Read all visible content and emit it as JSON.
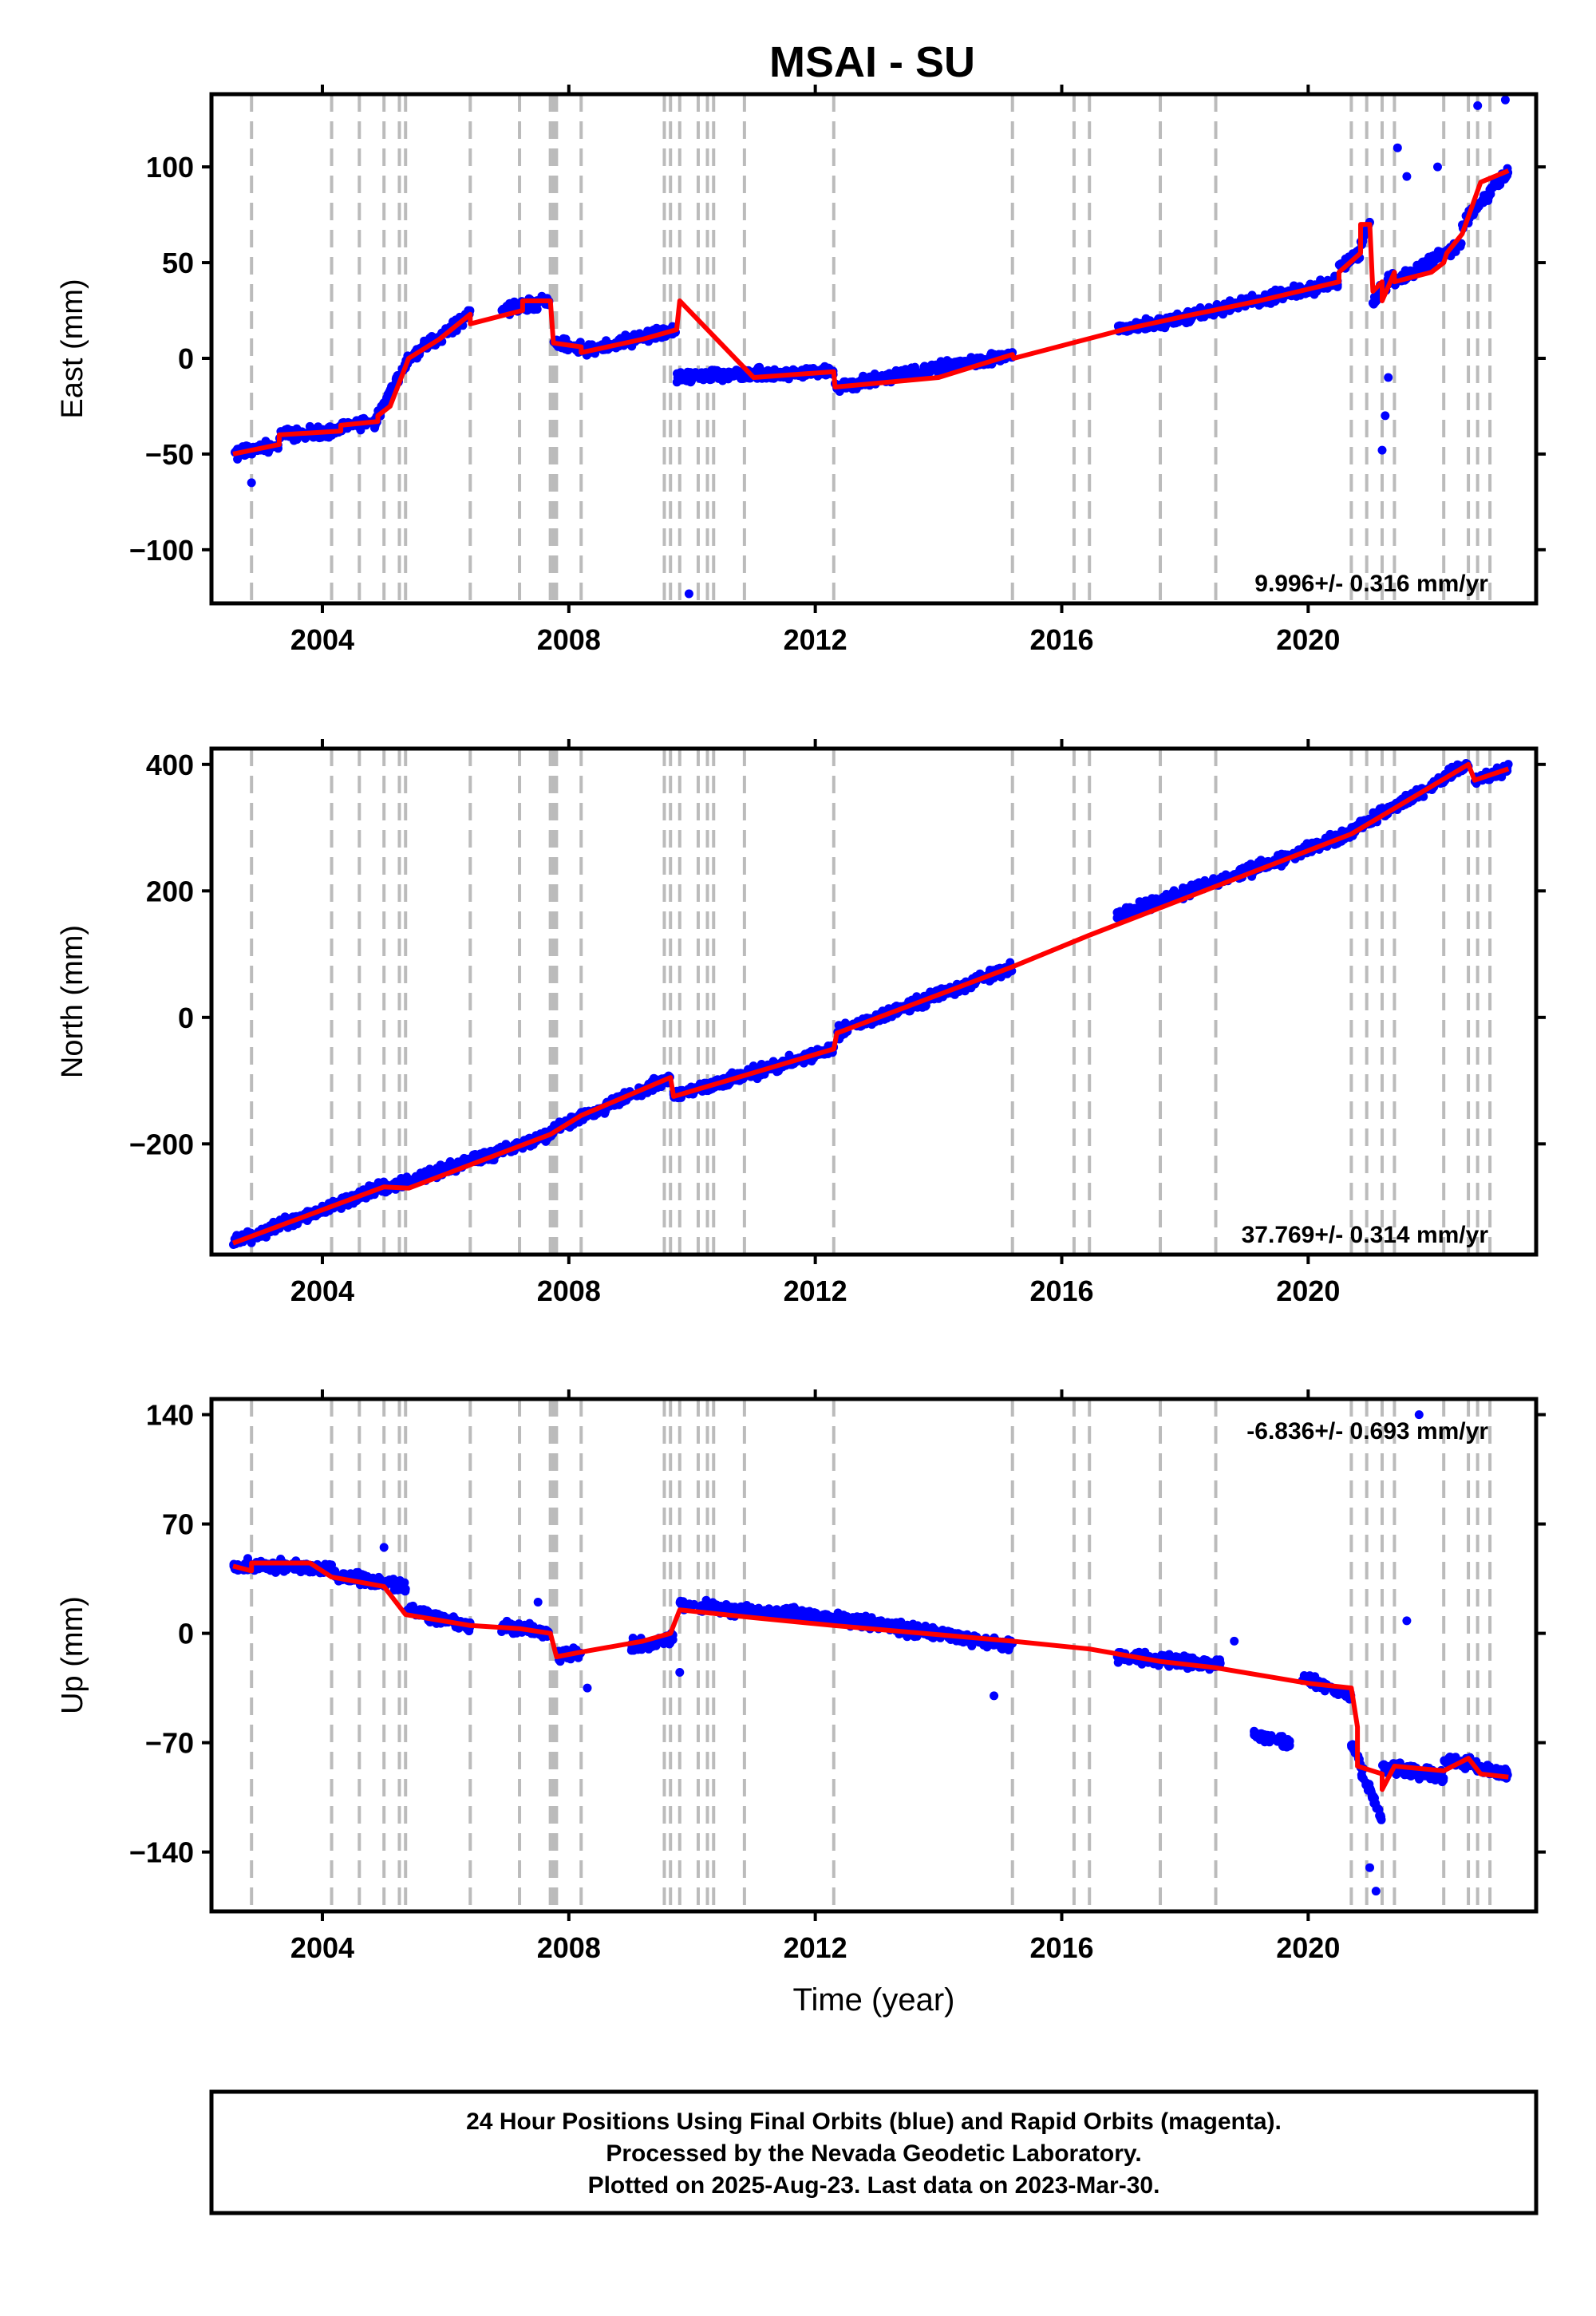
{
  "title": "MSAI - SU",
  "footer": {
    "line1": "24 Hour Positions Using Final Orbits (blue) and Rapid Orbits (magenta).",
    "line2": "Processed by the Nevada Geodetic Laboratory.",
    "line3": "Plotted on 2025-Aug-23. Last data on 2023-Mar-30."
  },
  "colors": {
    "final_orbits": "#0000ff",
    "model": "#ff0000",
    "step_lines": "#bbbbbb",
    "frame": "#000000"
  },
  "chart_data": [
    {
      "type": "scatter",
      "component": "East",
      "ylabel": "East (mm)",
      "xlabel": "",
      "xlim": [
        2002.2,
        2023.7
      ],
      "ylim": [
        -128,
        138
      ],
      "xticks": [
        2004,
        2008,
        2012,
        2016,
        2020
      ],
      "yticks": [
        -100,
        -50,
        0,
        50,
        100
      ],
      "ytick_labels": [
        "−100",
        "−50",
        "0",
        "50",
        "100"
      ],
      "rate_label": "9.996+/- 0.316 mm/yr",
      "rate_position": "bottom-right",
      "grid": false,
      "steps": [
        2002.85,
        2004.15,
        2004.6,
        2005.0,
        2005.25,
        2005.35,
        2006.4,
        2007.2,
        2007.7,
        2007.75,
        2007.8,
        2008.2,
        2009.55,
        2009.65,
        2009.8,
        2010.1,
        2010.25,
        2010.35,
        2010.85,
        2012.3,
        2015.2,
        2016.2,
        2016.45,
        2017.6,
        2018.5,
        2020.7,
        2020.95,
        2021.2,
        2021.4,
        2022.2,
        2022.6,
        2022.75,
        2022.95
      ],
      "series": [
        {
          "role": "model",
          "x": [
            2002.55,
            2003.3,
            2003.3,
            2004.3,
            2004.3,
            2004.9,
            2004.9,
            2005.1,
            2005.4,
            2005.9,
            2006.4,
            2006.4,
            2007.25,
            2007.25,
            2007.7,
            2007.75,
            2008.2,
            2008.2,
            2009.2,
            2009.75,
            2009.8,
            2011.0,
            2012.3,
            2012.32,
            2014.0,
            2015.2,
            2015.22,
            2017.0,
            2018.0,
            2019.2,
            2020.5,
            2020.5,
            2020.85,
            2020.85,
            2021.0,
            2021.05,
            2021.2,
            2021.2,
            2021.4,
            2021.4,
            2022.0,
            2022.2,
            2022.25,
            2022.5,
            2022.8,
            2023.25
          ],
          "y": [
            -50,
            -45,
            -40,
            -38,
            -35,
            -33,
            -30,
            -25,
            0,
            10,
            23,
            18,
            25,
            30,
            30,
            8,
            6,
            3,
            10,
            15,
            30,
            -10,
            -7,
            -15,
            -10,
            2,
            0,
            15,
            22,
            30,
            40,
            45,
            55,
            70,
            70,
            35,
            40,
            30,
            45,
            40,
            45,
            50,
            55,
            65,
            92,
            98
          ]
        },
        {
          "role": "observations-final",
          "name": "",
          "segments": [
            {
              "x": [
                2002.55,
                2003.3
              ],
              "y": [
                -50,
                -45
              ]
            },
            {
              "x": [
                2003.3,
                2004.3
              ],
              "y": [
                -40,
                -38
              ]
            },
            {
              "x": [
                2004.3,
                2004.9
              ],
              "y": [
                -35,
                -33
              ]
            },
            {
              "x": [
                2004.9,
                2005.4
              ],
              "y": [
                -30,
                0
              ]
            },
            {
              "x": [
                2005.4,
                2006.4
              ],
              "y": [
                0,
                23
              ]
            },
            {
              "x": [
                2006.9,
                2007.7
              ],
              "y": [
                25,
                30
              ]
            },
            {
              "x": [
                2007.75,
                2008.2
              ],
              "y": [
                8,
                6
              ]
            },
            {
              "x": [
                2008.2,
                2009.75
              ],
              "y": [
                3,
                15
              ]
            },
            {
              "x": [
                2009.75,
                2012.3
              ],
              "y": [
                -10,
                -7
              ]
            },
            {
              "x": [
                2012.32,
                2015.2
              ],
              "y": [
                -15,
                2
              ]
            },
            {
              "x": [
                2016.9,
                2017.8
              ],
              "y": [
                15,
                20
              ]
            },
            {
              "x": [
                2017.8,
                2020.5
              ],
              "y": [
                20,
                40
              ]
            },
            {
              "x": [
                2020.5,
                2020.85
              ],
              "y": [
                48,
                55
              ]
            },
            {
              "x": [
                2020.85,
                2021.0
              ],
              "y": [
                60,
                70
              ]
            },
            {
              "x": [
                2021.05,
                2021.4
              ],
              "y": [
                30,
                45
              ]
            },
            {
              "x": [
                2021.4,
                2022.5
              ],
              "y": [
                40,
                60
              ]
            },
            {
              "x": [
                2022.5,
                2023.25
              ],
              "y": [
                70,
                98
              ]
            }
          ],
          "outliers": [
            [
              2002.85,
              -65
            ],
            [
              2009.95,
              -123
            ],
            [
              2021.2,
              -48
            ],
            [
              2021.25,
              -30
            ],
            [
              2021.3,
              -10
            ],
            [
              2021.45,
              110
            ],
            [
              2022.75,
              132
            ],
            [
              2023.2,
              135
            ],
            [
              2021.6,
              95
            ],
            [
              2022.1,
              100
            ]
          ]
        }
      ]
    },
    {
      "type": "scatter",
      "component": "North",
      "ylabel": "North (mm)",
      "xlabel": "",
      "xlim": [
        2002.2,
        2023.7
      ],
      "ylim": [
        -375,
        425
      ],
      "xticks": [
        2004,
        2008,
        2012,
        2016,
        2020
      ],
      "yticks": [
        -200,
        0,
        200,
        400
      ],
      "ytick_labels": [
        "−200",
        "0",
        "200",
        "400"
      ],
      "rate_label": "37.769+/- 0.314 mm/yr",
      "rate_position": "bottom-right",
      "grid": false,
      "steps": [
        2002.85,
        2004.15,
        2004.6,
        2005.0,
        2005.25,
        2005.35,
        2006.4,
        2007.2,
        2007.7,
        2007.75,
        2007.8,
        2008.2,
        2009.55,
        2009.65,
        2009.8,
        2010.1,
        2010.25,
        2010.35,
        2010.85,
        2012.3,
        2015.2,
        2016.2,
        2016.45,
        2017.6,
        2018.5,
        2020.7,
        2020.95,
        2021.2,
        2021.4,
        2022.2,
        2022.6,
        2022.75,
        2022.95
      ],
      "series": [
        {
          "role": "model",
          "x": [
            2002.55,
            2005.0,
            2005.4,
            2007.7,
            2008.2,
            2009.65,
            2009.7,
            2012.3,
            2012.35,
            2015.2,
            2016.45,
            2020.7,
            2022.6,
            2022.7,
            2023.25
          ],
          "y": [
            -357,
            -268,
            -270,
            -185,
            -155,
            -95,
            -125,
            -50,
            -25,
            80,
            130,
            290,
            400,
            375,
            393
          ]
        },
        {
          "role": "observations-final",
          "name": "",
          "segments": [
            {
              "x": [
                2002.55,
                2005.0
              ],
              "y": [
                -357,
                -268
              ]
            },
            {
              "x": [
                2005.0,
                2007.7
              ],
              "y": [
                -272,
                -185
              ]
            },
            {
              "x": [
                2007.7,
                2009.65
              ],
              "y": [
                -180,
                -95
              ]
            },
            {
              "x": [
                2009.7,
                2012.3
              ],
              "y": [
                -125,
                -50
              ]
            },
            {
              "x": [
                2012.35,
                2015.2
              ],
              "y": [
                -25,
                80
              ]
            },
            {
              "x": [
                2016.9,
                2020.7
              ],
              "y": [
                160,
                290
              ]
            },
            {
              "x": [
                2020.7,
                2022.6
              ],
              "y": [
                295,
                400
              ]
            },
            {
              "x": [
                2022.7,
                2023.25
              ],
              "y": [
                375,
                393
              ]
            }
          ],
          "outliers": []
        }
      ]
    },
    {
      "type": "scatter",
      "component": "Up",
      "ylabel": "Up (mm)",
      "xlabel": "Time (year)",
      "xlim": [
        2002.2,
        2023.7
      ],
      "ylim": [
        -178,
        150
      ],
      "xticks": [
        2004,
        2008,
        2012,
        2016,
        2020
      ],
      "yticks": [
        -140,
        -70,
        0,
        70,
        140
      ],
      "ytick_labels": [
        "−140",
        "−70",
        "0",
        "70",
        "140"
      ],
      "rate_label": "-6.836+/- 0.693 mm/yr",
      "rate_position": "top-right",
      "grid": false,
      "steps": [
        2002.85,
        2004.15,
        2004.6,
        2005.0,
        2005.25,
        2005.35,
        2006.4,
        2007.2,
        2007.7,
        2007.75,
        2007.8,
        2008.2,
        2009.55,
        2009.65,
        2009.8,
        2010.1,
        2010.25,
        2010.35,
        2010.85,
        2012.3,
        2015.2,
        2016.2,
        2016.45,
        2017.6,
        2018.5,
        2020.7,
        2020.95,
        2021.2,
        2021.4,
        2022.2,
        2022.6,
        2022.75,
        2022.95
      ],
      "series": [
        {
          "role": "model",
          "x": [
            2002.55,
            2002.85,
            2002.85,
            2003.8,
            2004.15,
            2005.0,
            2005.35,
            2006.4,
            2007.2,
            2007.7,
            2007.8,
            2008.2,
            2009.2,
            2009.65,
            2009.8,
            2011.0,
            2012.3,
            2015.2,
            2016.45,
            2017.6,
            2018.5,
            2020.0,
            2020.7,
            2020.8,
            2020.8,
            2021.2,
            2021.2,
            2021.4,
            2022.2,
            2022.6,
            2022.8,
            2023.25
          ],
          "y": [
            43,
            40,
            45,
            45,
            36,
            30,
            12,
            5,
            3,
            0,
            -15,
            -12,
            -5,
            0,
            15,
            10,
            5,
            -5,
            -10,
            -18,
            -22,
            -32,
            -35,
            -60,
            -85,
            -90,
            -100,
            -85,
            -88,
            -80,
            -90,
            -92
          ]
        },
        {
          "role": "observations-final",
          "name": "",
          "segments": [
            {
              "x": [
                2002.55,
                2004.15
              ],
              "y": [
                43,
                42
              ]
            },
            {
              "x": [
                2004.15,
                2005.35
              ],
              "y": [
                38,
                30
              ]
            },
            {
              "x": [
                2005.35,
                2006.4
              ],
              "y": [
                15,
                5
              ]
            },
            {
              "x": [
                2006.9,
                2007.7
              ],
              "y": [
                5,
                0
              ]
            },
            {
              "x": [
                2007.8,
                2008.2
              ],
              "y": [
                -15,
                -12
              ]
            },
            {
              "x": [
                2009.0,
                2009.7
              ],
              "y": [
                -8,
                -3
              ]
            },
            {
              "x": [
                2009.8,
                2012.3
              ],
              "y": [
                18,
                10
              ]
            },
            {
              "x": [
                2012.3,
                2015.2
              ],
              "y": [
                10,
                -8
              ]
            },
            {
              "x": [
                2016.9,
                2018.6
              ],
              "y": [
                -15,
                -20
              ]
            },
            {
              "x": [
                2019.1,
                2019.7
              ],
              "y": [
                -65,
                -70
              ]
            },
            {
              "x": [
                2019.9,
                2020.7
              ],
              "y": [
                -28,
                -40
              ]
            },
            {
              "x": [
                2020.7,
                2021.2
              ],
              "y": [
                -70,
                -120
              ]
            },
            {
              "x": [
                2021.2,
                2022.2
              ],
              "y": [
                -85,
                -92
              ]
            },
            {
              "x": [
                2022.2,
                2023.25
              ],
              "y": [
                -80,
                -90
              ]
            }
          ],
          "outliers": [
            [
              2005.0,
              55
            ],
            [
              2007.5,
              20
            ],
            [
              2008.3,
              -35
            ],
            [
              2009.8,
              -25
            ],
            [
              2014.9,
              -40
            ],
            [
              2021.0,
              -150
            ],
            [
              2021.1,
              -165
            ],
            [
              2021.6,
              8
            ],
            [
              2021.8,
              140
            ],
            [
              2018.8,
              -5
            ]
          ]
        }
      ]
    }
  ]
}
